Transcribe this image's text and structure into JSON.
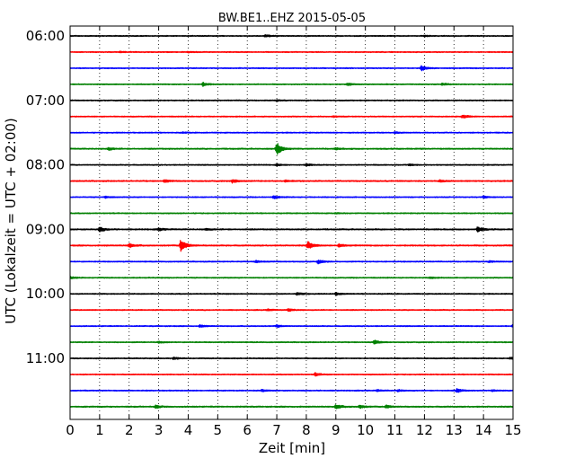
{
  "chart_data": {
    "type": "line",
    "title": "BW.BE1..EHZ 2015-05-05",
    "xlabel": "Zeit  [min]",
    "ylabel": "UTC (Lokalzeit = UTC + 02:00)",
    "xlim": [
      0,
      15
    ],
    "x_ticks": [
      "0",
      "1",
      "2",
      "3",
      "4",
      "5",
      "6",
      "7",
      "8",
      "9",
      "10",
      "11",
      "12",
      "13",
      "14",
      "15"
    ],
    "y_ticks": [
      {
        "label": "06:00",
        "trace": 0
      },
      {
        "label": "07:00",
        "trace": 4
      },
      {
        "label": "08:00",
        "trace": 8
      },
      {
        "label": "09:00",
        "trace": 12
      },
      {
        "label": "10:00",
        "trace": 16
      },
      {
        "label": "11:00",
        "trace": 20
      }
    ],
    "grid": "vertical dotted",
    "trace_colors": [
      "#000000",
      "#ff0000",
      "#0000ff",
      "#008000"
    ],
    "trace_interval_minutes": 15,
    "traces": [
      {
        "noise": 0.1,
        "events": [
          [
            6.6,
            0.28
          ],
          [
            12.0,
            0.12
          ]
        ]
      },
      {
        "noise": 0.1,
        "events": [
          [
            1.7,
            0.15
          ],
          [
            4.0,
            0.1
          ]
        ]
      },
      {
        "noise": 0.1,
        "events": [
          [
            11.9,
            0.6
          ]
        ]
      },
      {
        "noise": 0.1,
        "events": [
          [
            4.5,
            0.45
          ],
          [
            9.4,
            0.3
          ],
          [
            12.6,
            0.25
          ]
        ]
      },
      {
        "noise": 0.1,
        "events": [
          [
            7.0,
            0.15
          ]
        ]
      },
      {
        "noise": 0.1,
        "events": [
          [
            8.9,
            0.15
          ],
          [
            13.3,
            0.45
          ]
        ]
      },
      {
        "noise": 0.1,
        "events": [
          [
            3.8,
            0.12
          ],
          [
            11.0,
            0.15
          ]
        ]
      },
      {
        "noise": 0.12,
        "events": [
          [
            7.0,
            1.6
          ],
          [
            1.3,
            0.3
          ],
          [
            9.0,
            0.2
          ]
        ]
      },
      {
        "noise": 0.1,
        "events": [
          [
            7.0,
            0.25
          ],
          [
            8.0,
            0.3
          ],
          [
            11.5,
            0.2
          ]
        ]
      },
      {
        "noise": 0.12,
        "events": [
          [
            5.5,
            0.5
          ],
          [
            3.2,
            0.3
          ],
          [
            7.3,
            0.2
          ],
          [
            12.5,
            0.25
          ]
        ]
      },
      {
        "noise": 0.1,
        "events": [
          [
            6.9,
            0.35
          ],
          [
            1.2,
            0.2
          ],
          [
            14.0,
            0.25
          ]
        ]
      },
      {
        "noise": 0.1,
        "events": [
          [
            9.0,
            0.1
          ]
        ]
      },
      {
        "noise": 0.12,
        "events": [
          [
            1.0,
            0.6
          ],
          [
            3.0,
            0.3
          ],
          [
            13.8,
            0.65
          ],
          [
            4.6,
            0.2
          ]
        ]
      },
      {
        "noise": 0.12,
        "events": [
          [
            3.75,
            1.7
          ],
          [
            2.0,
            0.5
          ],
          [
            8.05,
            1.0
          ],
          [
            9.1,
            0.35
          ]
        ]
      },
      {
        "noise": 0.1,
        "events": [
          [
            8.4,
            0.45
          ],
          [
            6.3,
            0.25
          ],
          [
            14.2,
            0.2
          ]
        ]
      },
      {
        "noise": 0.1,
        "events": [
          [
            0.0,
            0.3
          ],
          [
            12.2,
            0.2
          ]
        ]
      },
      {
        "noise": 0.1,
        "events": [
          [
            7.7,
            0.35
          ],
          [
            9.0,
            0.3
          ]
        ]
      },
      {
        "noise": 0.1,
        "events": [
          [
            7.4,
            0.35
          ],
          [
            6.7,
            0.2
          ]
        ]
      },
      {
        "noise": 0.1,
        "events": [
          [
            4.4,
            0.3
          ],
          [
            7.0,
            0.3
          ],
          [
            15.0,
            0.4
          ]
        ]
      },
      {
        "noise": 0.1,
        "events": [
          [
            10.3,
            0.5
          ],
          [
            3.0,
            0.2
          ]
        ]
      },
      {
        "noise": 0.1,
        "events": [
          [
            3.5,
            0.3
          ],
          [
            14.9,
            0.25
          ]
        ]
      },
      {
        "noise": 0.1,
        "events": [
          [
            8.3,
            0.35
          ]
        ]
      },
      {
        "noise": 0.1,
        "events": [
          [
            13.1,
            0.5
          ],
          [
            6.5,
            0.25
          ],
          [
            10.4,
            0.2
          ],
          [
            11.1,
            0.25
          ],
          [
            14.3,
            0.2
          ]
        ]
      },
      {
        "noise": 0.12,
        "events": [
          [
            9.0,
            0.6
          ],
          [
            2.9,
            0.35
          ],
          [
            9.8,
            0.4
          ],
          [
            10.7,
            0.4
          ]
        ]
      }
    ]
  }
}
